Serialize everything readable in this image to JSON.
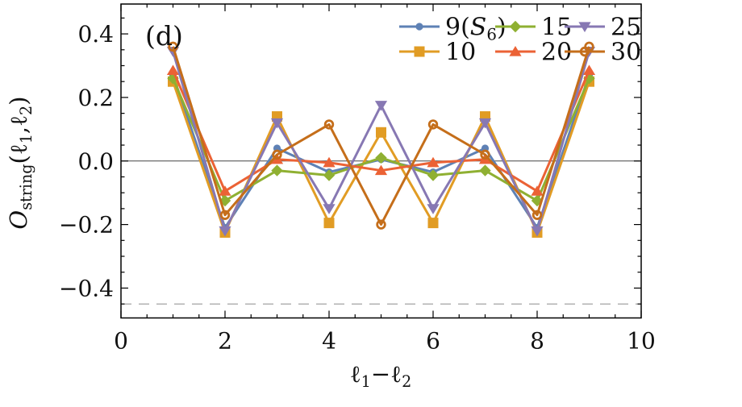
{
  "chart_data": {
    "type": "line",
    "panel_label": "(d)",
    "x": [
      1,
      2,
      3,
      4,
      5,
      6,
      7,
      8,
      9
    ],
    "series": [
      {
        "name": "9(S6)",
        "legend_parts": [
          {
            "t": "9("
          },
          {
            "t": "S",
            "i": true
          },
          {
            "t": "6",
            "s": true
          },
          {
            "t": ")"
          }
        ],
        "color": "#5E81B5",
        "marker": "circle",
        "values": [
          0.27,
          -0.21,
          0.04,
          -0.035,
          0.005,
          -0.035,
          0.04,
          -0.21,
          0.27
        ]
      },
      {
        "name": "10",
        "legend_parts": [
          {
            "t": "10"
          }
        ],
        "color": "#E19C24",
        "marker": "square",
        "values": [
          0.25,
          -0.225,
          0.14,
          -0.195,
          0.09,
          -0.195,
          0.14,
          -0.225,
          0.25
        ]
      },
      {
        "name": "15",
        "legend_parts": [
          {
            "t": "15"
          }
        ],
        "color": "#8FB032",
        "marker": "diamond",
        "values": [
          0.26,
          -0.125,
          -0.03,
          -0.045,
          0.01,
          -0.045,
          -0.03,
          -0.125,
          0.26
        ]
      },
      {
        "name": "20",
        "legend_parts": [
          {
            "t": "20"
          }
        ],
        "color": "#EB6235",
        "marker": "triangle-up",
        "values": [
          0.285,
          -0.095,
          0.005,
          -0.005,
          -0.03,
          -0.005,
          0.005,
          -0.095,
          0.285
        ]
      },
      {
        "name": "25",
        "legend_parts": [
          {
            "t": "25"
          }
        ],
        "color": "#8778B3",
        "marker": "triangle-down",
        "values": [
          0.345,
          -0.22,
          0.12,
          -0.15,
          0.175,
          -0.15,
          0.12,
          -0.22,
          0.345
        ]
      },
      {
        "name": "30",
        "legend_parts": [
          {
            "t": "30"
          }
        ],
        "color": "#C56E1A",
        "marker": "open-circle",
        "values": [
          0.36,
          -0.17,
          0.02,
          0.115,
          -0.2,
          0.115,
          0.02,
          -0.17,
          0.36
        ]
      }
    ],
    "xlim": [
      0,
      10
    ],
    "ylim": [
      -0.494,
      0.494
    ],
    "xticks": {
      "major": [
        {
          "v": 0,
          "label": "0"
        },
        {
          "v": 2,
          "label": "2"
        },
        {
          "v": 4,
          "label": "4"
        },
        {
          "v": 6,
          "label": "6"
        },
        {
          "v": 8,
          "label": "8"
        },
        {
          "v": 10,
          "label": "10"
        }
      ],
      "minor_step": 0.5
    },
    "yticks": {
      "major": [
        {
          "v": 0.4,
          "label": "0.4"
        },
        {
          "v": 0.2,
          "label": "0.2"
        },
        {
          "v": 0,
          "label": "0.0"
        },
        {
          "v": -0.2,
          "label": "−0.2"
        },
        {
          "v": -0.4,
          "label": "−0.4"
        }
      ],
      "minor_step": 0.05
    },
    "xlabel_parts": [
      {
        "t": "ℓ"
      },
      {
        "t": "1",
        "s": true
      },
      {
        "t": "−"
      },
      {
        "t": "ℓ"
      },
      {
        "t": "2",
        "s": true
      }
    ],
    "ylabel_parts": [
      {
        "t": "O",
        "i": true
      },
      {
        "t": "string",
        "s": true
      },
      {
        "t": "("
      },
      {
        "t": "ℓ"
      },
      {
        "t": "1",
        "s": true
      },
      {
        "t": ","
      },
      {
        "t": "ℓ"
      },
      {
        "t": "2",
        "s": true
      },
      {
        "t": ")"
      }
    ],
    "reference_lines": [
      {
        "y": 0,
        "style": "solid",
        "color": "#444444"
      },
      {
        "y": -0.45,
        "style": "dashed",
        "color": "#999999"
      }
    ],
    "legend": {
      "position": "top-right",
      "rows": [
        [
          "9(S6)",
          "15",
          "25"
        ],
        [
          "10",
          "20",
          "30"
        ]
      ]
    },
    "grid": false,
    "frame_color": "#000000"
  }
}
